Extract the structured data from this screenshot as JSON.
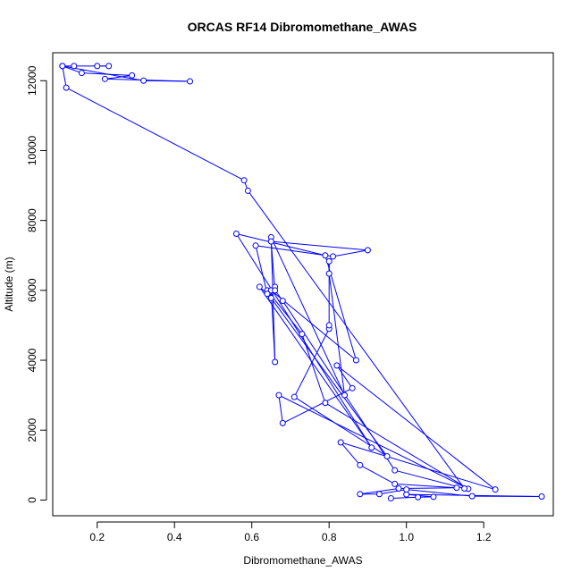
{
  "chart_data": {
    "type": "line",
    "title": "ORCAS RF14 Dibromomethane_AWAS",
    "xlabel": "Dibromomethane_AWAS",
    "ylabel": "Altitude (m)",
    "xlim": [
      0.085,
      1.38
    ],
    "ylim": [
      -450,
      12800
    ],
    "xticks": [
      0.2,
      0.4,
      0.6,
      0.8,
      1.0,
      1.2
    ],
    "xtick_labels": [
      "0.2",
      "0.4",
      "0.6",
      "0.8",
      "1.0",
      "1.2"
    ],
    "yticks": [
      0,
      2000,
      4000,
      6000,
      8000,
      10000,
      12000
    ],
    "ytick_labels": [
      "0",
      "2000",
      "4000",
      "6000",
      "8000",
      "10000",
      "12000"
    ],
    "grid": false,
    "legend": "none",
    "line_color": "#0000ff",
    "marker": "open-circle",
    "series": [
      {
        "x": [
          0.96,
          1.03,
          1.07,
          1.0,
          1.35,
          1.17,
          1.0,
          0.93,
          0.88,
          0.98,
          1.13,
          0.97,
          0.88,
          0.83,
          1.23,
          0.82,
          0.86,
          0.68,
          0.67,
          1.16,
          0.79,
          0.73,
          0.64,
          0.66,
          0.65,
          0.95,
          0.71,
          0.8,
          0.8,
          0.8,
          0.8,
          0.84,
          0.65,
          0.66,
          0.65,
          0.87,
          0.79,
          0.56,
          0.91,
          0.62,
          0.64,
          0.61,
          0.81,
          0.9,
          0.65,
          0.66,
          0.68,
          0.97,
          1.15,
          0.59,
          0.58,
          0.12,
          0.11,
          0.16,
          0.29,
          0.22,
          0.44,
          0.32,
          0.11,
          0.14,
          0.23,
          0.2
        ],
        "y": [
          50,
          80,
          90,
          160,
          100,
          110,
          300,
          170,
          170,
          330,
          350,
          460,
          1000,
          1650,
          300,
          3850,
          3200,
          2200,
          3000,
          320,
          2780,
          4750,
          6000,
          6100,
          5780,
          1250,
          2950,
          4900,
          5000,
          6830,
          6480,
          3000,
          7520,
          3950,
          6000,
          4000,
          7000,
          7620,
          1500,
          6100,
          5900,
          7280,
          6970,
          7150,
          7400,
          6000,
          5700,
          850,
          330,
          8850,
          9150,
          11800,
          12420,
          12220,
          12150,
          12050,
          11980,
          12000,
          12420,
          12420,
          12420,
          12420
        ]
      }
    ]
  }
}
